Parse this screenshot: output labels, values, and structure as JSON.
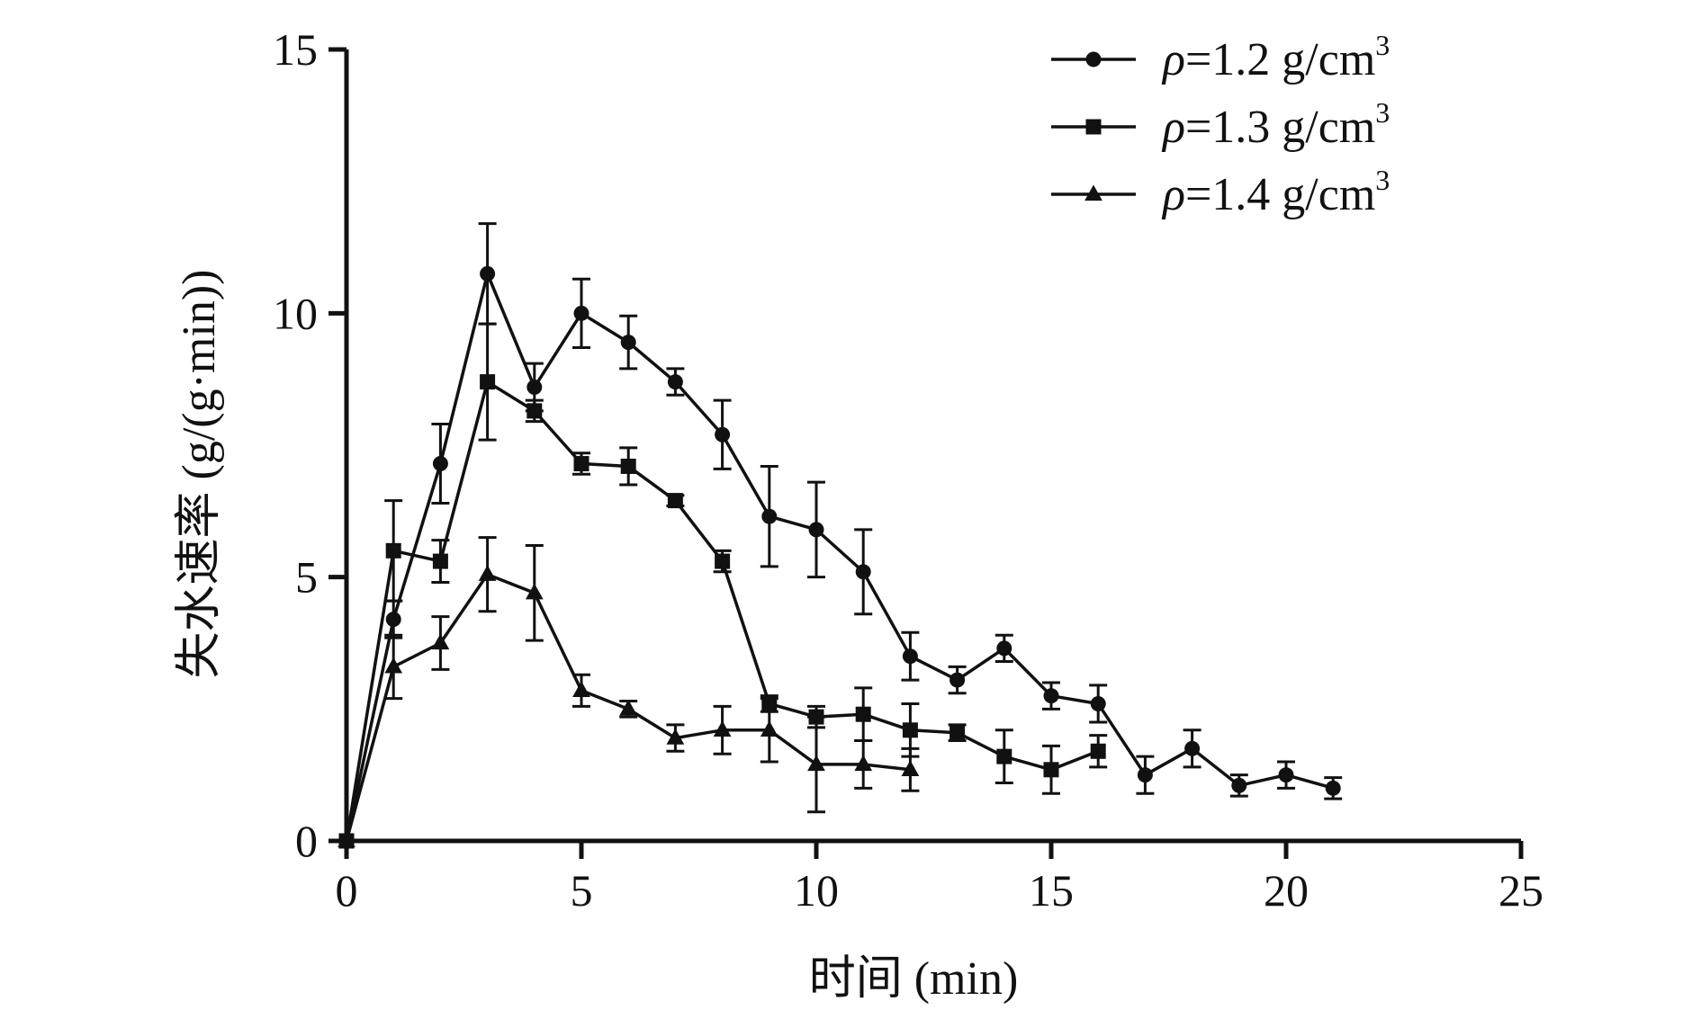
{
  "chart_data": {
    "type": "line",
    "xlabel": "时间 (min)",
    "ylabel": "失水速率 (g/(g·min))",
    "xlim": [
      0,
      25
    ],
    "ylim": [
      0,
      15
    ],
    "x_ticks": [
      0,
      5,
      10,
      15,
      20,
      25
    ],
    "y_ticks": [
      0,
      5,
      10,
      15
    ],
    "x_tick_labels": [
      "0",
      "5",
      "10",
      "15",
      "20",
      "25"
    ],
    "y_tick_labels": [
      "0",
      "5",
      "10",
      "15"
    ],
    "grid": false,
    "legend_position": "top-right",
    "series": [
      {
        "name": "ρ=1.2 g/cm³",
        "legend_rho": "ρ",
        "legend_rest": "=1.2 g/cm",
        "legend_sup": "3",
        "marker": "circle",
        "x": [
          0,
          1,
          2,
          3,
          4,
          5,
          6,
          7,
          8,
          9,
          10,
          11,
          12,
          13,
          14,
          15,
          16,
          17,
          18,
          19,
          20,
          21
        ],
        "y": [
          0,
          4.2,
          7.15,
          10.75,
          8.6,
          10.0,
          9.45,
          8.7,
          7.7,
          6.15,
          5.9,
          5.1,
          3.5,
          3.05,
          3.65,
          2.75,
          2.6,
          1.25,
          1.75,
          1.05,
          1.25,
          1.0
        ],
        "err": [
          0,
          0.35,
          0.75,
          0.95,
          0.45,
          0.65,
          0.5,
          0.25,
          0.65,
          0.95,
          0.9,
          0.8,
          0.45,
          0.25,
          0.25,
          0.25,
          0.35,
          0.35,
          0.35,
          0.2,
          0.25,
          0.2
        ]
      },
      {
        "name": "ρ=1.3 g/cm³",
        "legend_rho": "ρ",
        "legend_rest": "=1.3 g/cm",
        "legend_sup": "3",
        "marker": "square",
        "x": [
          0,
          1,
          2,
          3,
          4,
          5,
          6,
          7,
          8,
          9,
          10,
          11,
          12,
          13,
          14,
          15,
          16
        ],
        "y": [
          0,
          5.5,
          5.3,
          8.7,
          8.15,
          7.15,
          7.1,
          6.45,
          5.3,
          2.6,
          2.35,
          2.4,
          2.1,
          2.05,
          1.6,
          1.35,
          1.7
        ],
        "err": [
          0,
          0.95,
          0.4,
          1.1,
          0.2,
          0.2,
          0.35,
          0.1,
          0.2,
          0.15,
          0.2,
          0.5,
          0.5,
          0.15,
          0.5,
          0.45,
          0.3
        ]
      },
      {
        "name": "ρ=1.4 g/cm³",
        "legend_rho": "ρ",
        "legend_rest": "=1.4 g/cm",
        "legend_sup": "3",
        "marker": "triangle",
        "x": [
          0,
          1,
          2,
          3,
          4,
          5,
          6,
          7,
          8,
          9,
          10,
          11,
          12
        ],
        "y": [
          0,
          3.3,
          3.75,
          5.05,
          4.7,
          2.85,
          2.5,
          1.95,
          2.1,
          2.1,
          1.45,
          1.45,
          1.35
        ],
        "err": [
          0,
          0.6,
          0.5,
          0.7,
          0.9,
          0.3,
          0.15,
          0.25,
          0.45,
          0.6,
          0.9,
          0.45,
          0.4
        ]
      }
    ]
  }
}
